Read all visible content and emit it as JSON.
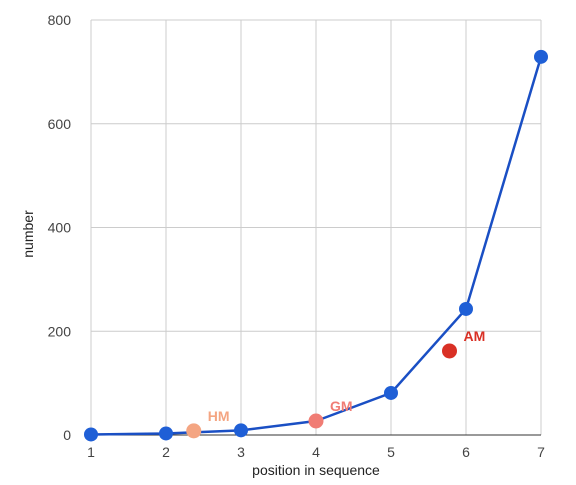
{
  "chart_data": {
    "type": "line",
    "xlabel": "position in sequence",
    "ylabel": "number",
    "xlim": [
      1,
      7
    ],
    "ylim": [
      0,
      800
    ],
    "x_ticks": [
      1,
      2,
      3,
      4,
      5,
      6,
      7
    ],
    "y_ticks": [
      0,
      200,
      400,
      600,
      800
    ],
    "grid": true,
    "series": [
      {
        "x": [
          1,
          2,
          3,
          4,
          5,
          6,
          7
        ],
        "values": [
          1,
          3,
          9,
          27,
          81,
          243,
          729
        ],
        "color": "#1a4fc4",
        "marker_color": "#1f5fd6"
      }
    ],
    "annotations": [
      {
        "label": "HM",
        "x": 2.37,
        "y": 8,
        "color": "#f4a582",
        "label_color": "#f4a582"
      },
      {
        "label": "GM",
        "x": 4,
        "y": 27,
        "color": "#f07c74",
        "label_color": "#f07c74"
      },
      {
        "label": "AM",
        "x": 5.78,
        "y": 162,
        "color": "#d93025",
        "label_color": "#d93025"
      }
    ]
  }
}
